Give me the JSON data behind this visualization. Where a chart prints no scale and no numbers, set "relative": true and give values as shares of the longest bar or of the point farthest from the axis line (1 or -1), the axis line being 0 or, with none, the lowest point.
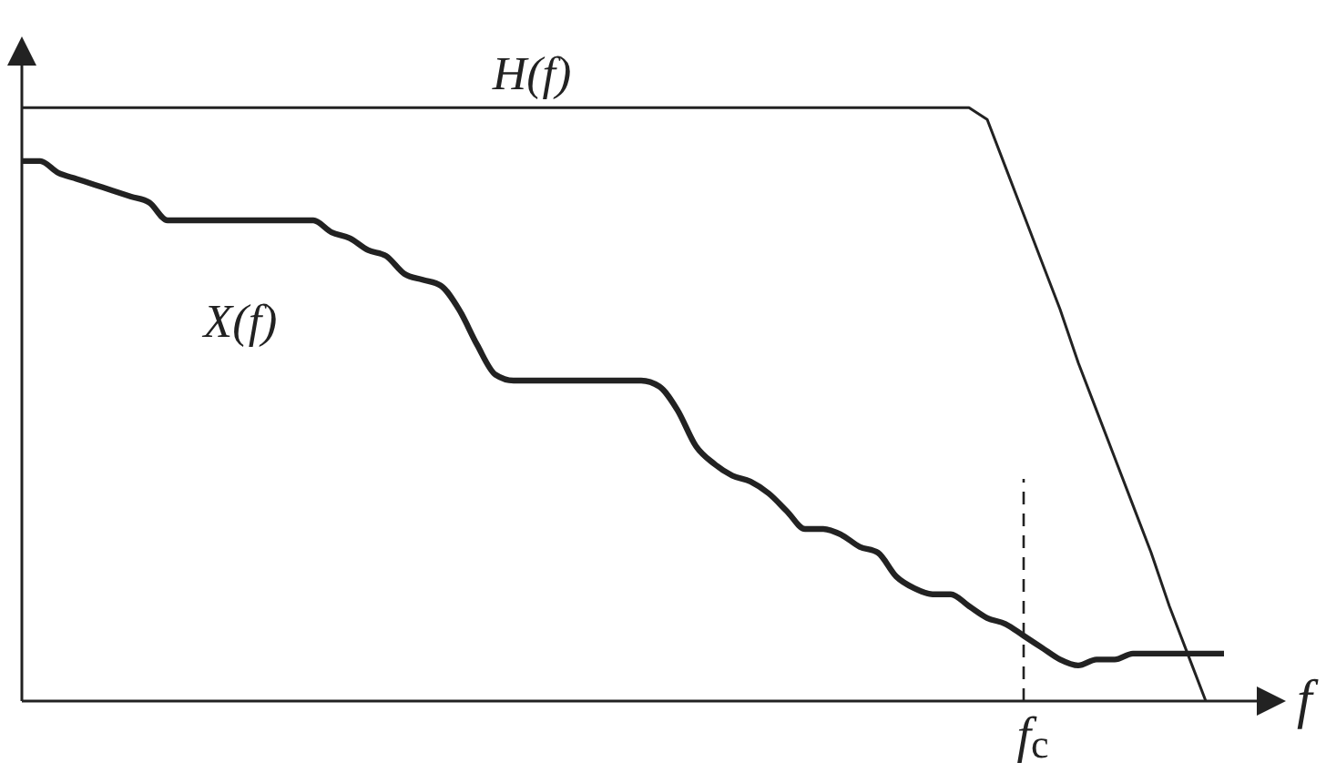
{
  "chart_data": {
    "type": "line",
    "relative": true,
    "xlabel": "f",
    "categories": [
      null,
      null,
      null,
      null,
      null,
      null,
      null,
      null,
      null,
      null,
      null,
      null,
      null,
      null,
      null,
      null,
      null,
      null,
      null,
      null,
      null,
      null,
      null,
      null,
      null,
      null,
      null,
      null,
      null,
      null,
      null,
      null,
      null,
      null,
      null,
      null,
      null,
      null,
      null,
      null,
      null,
      null,
      null,
      null,
      null,
      null,
      null,
      null,
      null,
      null,
      null,
      null,
      null,
      null,
      null,
      null,
      null,
      null,
      null,
      null,
      null,
      null,
      null,
      null,
      null,
      null,
      null
    ],
    "series": [
      {
        "name": "H(f)",
        "color": "#222222",
        "values": [
          1,
          1,
          1,
          1,
          1,
          1,
          1,
          1,
          1,
          1,
          1,
          1,
          1,
          1,
          1,
          1,
          1,
          1,
          1,
          1,
          1,
          1,
          1,
          1,
          1,
          1,
          1,
          1,
          1,
          1,
          1,
          1,
          1,
          1,
          1,
          1,
          1,
          1,
          1,
          1,
          1,
          1,
          1,
          1,
          1,
          1,
          1,
          1,
          1,
          1,
          1,
          1,
          1,
          0.98,
          0.9,
          0.82,
          0.74,
          0.66,
          0.57,
          0.49,
          0.41,
          0.33,
          0.25,
          0.16,
          0.08,
          0,
          null
        ]
      },
      {
        "name": "X(f)",
        "color": "#222222",
        "values": [
          0.91,
          0.91,
          0.89,
          0.88,
          0.87,
          0.86,
          0.85,
          0.84,
          0.81,
          0.81,
          0.81,
          0.81,
          0.81,
          0.81,
          0.81,
          0.81,
          0.81,
          0.79,
          0.78,
          0.76,
          0.75,
          0.72,
          0.71,
          0.7,
          0.66,
          0.6,
          0.55,
          0.54,
          0.54,
          0.54,
          0.54,
          0.54,
          0.54,
          0.54,
          0.54,
          0.53,
          0.49,
          0.43,
          0.4,
          0.38,
          0.37,
          0.35,
          0.32,
          0.29,
          0.29,
          0.28,
          0.26,
          0.25,
          0.21,
          0.19,
          0.18,
          0.18,
          0.16,
          0.14,
          0.13,
          0.11,
          0.09,
          0.07,
          0.06,
          0.07,
          0.07,
          0.08,
          0.08,
          0.08,
          0.08,
          0.08,
          0.08
        ]
      }
    ],
    "annotations": [
      "f$_{c}$"
    ]
  }
}
